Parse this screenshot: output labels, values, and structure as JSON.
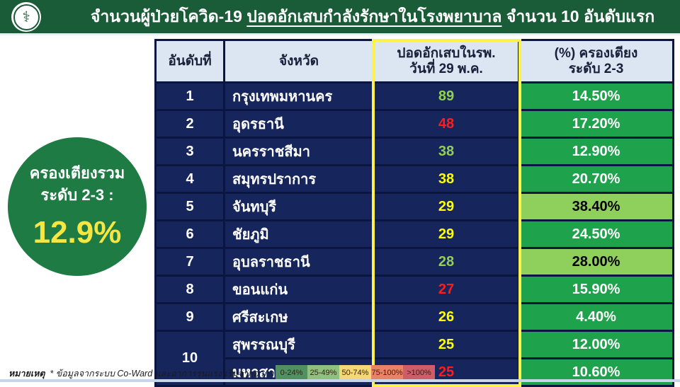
{
  "ui": {
    "header": {
      "logo_name": "ministry-of-public-health-logo",
      "title_pre": "จำนวนผู้ป่วยโควิด-19 ",
      "title_underlined": "ปอดอักเสบกำลังรักษาในโรงพยาบาล",
      "title_post": " จำนวน 10 อันดับแรก"
    },
    "summary_circle": {
      "line1": "ครองเตียงรวม",
      "line2": "ระดับ 2-3 :",
      "value": "12.9%",
      "value_color": "#f5e642",
      "bg_color": "#1f7b44"
    },
    "table": {
      "columns": [
        {
          "line1": "อันดับที่",
          "line2": ""
        },
        {
          "line1": "จังหวัด",
          "line2": ""
        },
        {
          "line1": "ปอดอักเสบในรพ.",
          "line2": "วันที่ 29 พ.ค."
        },
        {
          "line1": "(%) ครองเตียง",
          "line2": "ระดับ 2-3"
        }
      ],
      "rows": [
        {
          "rank": "1",
          "rank_span": 1,
          "province": "กรุงเทพมหานคร",
          "cases": "89",
          "cases_color": "green",
          "occupancy": "14.50%",
          "occupancy_level": "normal"
        },
        {
          "rank": "2",
          "rank_span": 1,
          "province": "อุดรธานี",
          "cases": "48",
          "cases_color": "red",
          "occupancy": "17.20%",
          "occupancy_level": "normal"
        },
        {
          "rank": "3",
          "rank_span": 1,
          "province": "นครราชสีมา",
          "cases": "38",
          "cases_color": "green",
          "occupancy": "12.90%",
          "occupancy_level": "normal"
        },
        {
          "rank": "4",
          "rank_span": 1,
          "province": "สมุทรปราการ",
          "cases": "38",
          "cases_color": "yellow",
          "occupancy": "20.70%",
          "occupancy_level": "normal"
        },
        {
          "rank": "5",
          "rank_span": 1,
          "province": "จันทบุรี",
          "cases": "29",
          "cases_color": "yellow",
          "occupancy": "38.40%",
          "occupancy_level": "light"
        },
        {
          "rank": "6",
          "rank_span": 1,
          "province": "ชัยภูมิ",
          "cases": "29",
          "cases_color": "yellow",
          "occupancy": "24.50%",
          "occupancy_level": "normal"
        },
        {
          "rank": "7",
          "rank_span": 1,
          "province": "อุบลราชธานี",
          "cases": "28",
          "cases_color": "green",
          "occupancy": "28.00%",
          "occupancy_level": "light"
        },
        {
          "rank": "8",
          "rank_span": 1,
          "province": "ขอนแก่น",
          "cases": "27",
          "cases_color": "red",
          "occupancy": "15.90%",
          "occupancy_level": "normal"
        },
        {
          "rank": "9",
          "rank_span": 1,
          "province": "ศรีสะเกษ",
          "cases": "26",
          "cases_color": "yellow",
          "occupancy": "4.40%",
          "occupancy_level": "normal"
        },
        {
          "rank": "10",
          "rank_span": 2,
          "province": "สุพรรณบุรี",
          "cases": "25",
          "cases_color": "yellow",
          "occupancy": "12.00%",
          "occupancy_level": "normal"
        },
        {
          "rank": "",
          "rank_span": 0,
          "province": "มหาสารคาม",
          "cases": "25",
          "cases_color": "red",
          "occupancy": "10.60%",
          "occupancy_level": "normal"
        }
      ]
    },
    "colors": {
      "topbar_green": "#1a5c38",
      "row_navy": "#16265c",
      "header_cell_bg": "#dce6f2",
      "col3_outline_yellow": "#fdf249",
      "cases_green": "#92d050",
      "cases_yellow": "#ffff00",
      "cases_red": "#ff1c1c",
      "occupancy_normal_bg": "#1fa24c",
      "occupancy_normal_text": "#ffffff",
      "occupancy_light_bg": "#8fd05c",
      "occupancy_light_text": "#000000"
    },
    "footnote": {
      "bold": "หมายเหตุ",
      "text": "  * ข้อมูลจากระบบ Co-Ward และอาการรุนแรง เริ่มจากอาการปอดอักเสบ, อัตราครองเตียง"
    },
    "legend": {
      "items": [
        {
          "label": "0-24%",
          "color": "#4f9160"
        },
        {
          "label": "25-49%",
          "color": "#90c07e"
        },
        {
          "label": "50-74%",
          "color": "#f6d775"
        },
        {
          "label": "75-100%",
          "color": "#ec8265"
        },
        {
          "label": ">100%",
          "color": "#cf5d69"
        }
      ]
    }
  },
  "chart_data": {
    "type": "table",
    "title": "จำนวนผู้ป่วยโควิด-19 ปอดอักเสบกำลังรักษาในโรงพยาบาล จำนวน 10 อันดับแรก",
    "columns": [
      "อันดับที่",
      "จังหวัด",
      "ปอดอักเสบในรพ. วันที่ 29 พ.ค.",
      "(%) ครองเตียง ระดับ 2-3"
    ],
    "rows": [
      [
        1,
        "กรุงเทพมหานคร",
        89,
        14.5
      ],
      [
        2,
        "อุดรธานี",
        48,
        17.2
      ],
      [
        3,
        "นครราชสีมา",
        38,
        12.9
      ],
      [
        4,
        "สมุทรปราการ",
        38,
        20.7
      ],
      [
        5,
        "จันทบุรี",
        29,
        38.4
      ],
      [
        6,
        "ชัยภูมิ",
        29,
        24.5
      ],
      [
        7,
        "อุบลราชธานี",
        28,
        28.0
      ],
      [
        8,
        "ขอนแก่น",
        27,
        15.9
      ],
      [
        9,
        "ศรีสะเกษ",
        26,
        4.4
      ],
      [
        10,
        "สุพรรณบุรี",
        25,
        12.0
      ],
      [
        10,
        "มหาสารคาม",
        25,
        10.6
      ]
    ],
    "summary": "ครองเตียงรวม ระดับ 2-3 : 12.9%",
    "legend_bins": [
      "0-24%",
      "25-49%",
      "50-74%",
      "75-100%",
      ">100%"
    ]
  }
}
